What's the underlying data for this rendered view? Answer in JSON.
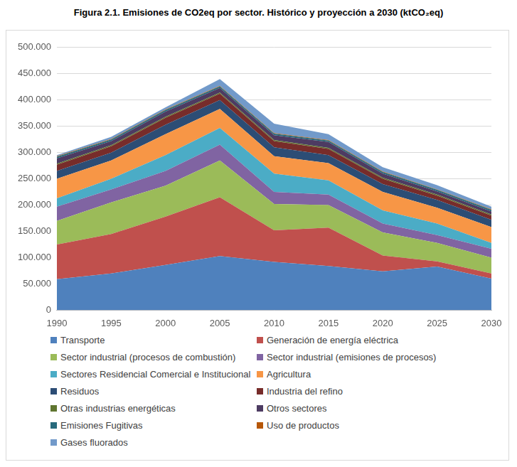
{
  "chart_data": {
    "type": "area",
    "title": "Figura 2.1. Emisiones de CO2eq por sector. Histórico y proyección a 2030 (ktCO₂eq)",
    "categories": [
      "1990",
      "1995",
      "2000",
      "2005",
      "2010",
      "2015",
      "2020",
      "2025",
      "2030"
    ],
    "stacked": true,
    "grid": true,
    "legend": "bottom",
    "ylim": [
      0,
      500000
    ],
    "yticks": [
      0,
      {
        "value": 50000,
        "label": "50.000"
      },
      {
        "value": 100000,
        "label": "100.000"
      },
      {
        "value": 150000,
        "label": "150.000"
      },
      {
        "value": 200000,
        "label": "200.000"
      },
      {
        "value": 250000,
        "label": "250.000"
      },
      {
        "value": 300000,
        "label": "300.000"
      },
      {
        "value": 350000,
        "label": "350.000"
      },
      {
        "value": 400000,
        "label": "400.000"
      },
      {
        "value": 450000,
        "label": "450.000"
      },
      {
        "value": 500000,
        "label": "500.000"
      }
    ],
    "series": [
      {
        "name": "Transporte",
        "color": "#4f81bd",
        "values": [
          59000,
          70000,
          86000,
          103000,
          92000,
          84000,
          74000,
          83000,
          60000
        ]
      },
      {
        "name": "Generación de energía eléctrica",
        "color": "#c0504d",
        "values": [
          66000,
          75000,
          92000,
          112000,
          60000,
          73000,
          30000,
          10000,
          10000
        ]
      },
      {
        "name": "Sector industrial (procesos de combustión)",
        "color": "#9bbb59",
        "values": [
          45000,
          60000,
          59000,
          70000,
          50000,
          43000,
          44000,
          35000,
          30000
        ]
      },
      {
        "name": "Sector industrial (emisiones de procesos)",
        "color": "#8064a2",
        "values": [
          27000,
          25000,
          28000,
          30000,
          23000,
          20000,
          17000,
          15000,
          17000
        ]
      },
      {
        "name": "Sectores Residencial Comercial e Institucional",
        "color": "#4bacc6",
        "values": [
          16000,
          20000,
          30000,
          32000,
          35000,
          27000,
          25000,
          22000,
          11000
        ]
      },
      {
        "name": "Agricultura",
        "color": "#f79646",
        "values": [
          37000,
          35000,
          40000,
          36000,
          33000,
          33000,
          35000,
          30000,
          30000
        ]
      },
      {
        "name": "Residuos",
        "color": "#2c4d75",
        "values": [
          15000,
          15000,
          18000,
          17000,
          17000,
          15000,
          15000,
          15000,
          14000
        ]
      },
      {
        "name": "Industria del refino",
        "color": "#772c2a",
        "values": [
          12000,
          12000,
          13000,
          12000,
          12000,
          12000,
          10000,
          8000,
          8000
        ]
      },
      {
        "name": "Otras industrias energéticas",
        "color": "#5f7530",
        "values": [
          2000,
          2000,
          2000,
          2000,
          2000,
          2000,
          2000,
          2000,
          2000
        ]
      },
      {
        "name": "Otros sectores",
        "color": "#4d3b62",
        "values": [
          10000,
          8000,
          10000,
          9000,
          9000,
          11000,
          8000,
          6000,
          6000
        ]
      },
      {
        "name": "Emisiones Fugitivas",
        "color": "#276a7c",
        "values": [
          3000,
          3000,
          3000,
          3000,
          3000,
          3000,
          3000,
          3000,
          3000
        ]
      },
      {
        "name": "Uso de productos",
        "color": "#b65708",
        "values": [
          1000,
          1000,
          1000,
          1000,
          1000,
          1000,
          1000,
          1000,
          1000
        ]
      },
      {
        "name": "Gases fluorados",
        "color": "#729aca",
        "values": [
          2000,
          4000,
          4000,
          13000,
          18000,
          11000,
          8000,
          8000,
          5000
        ]
      }
    ]
  }
}
